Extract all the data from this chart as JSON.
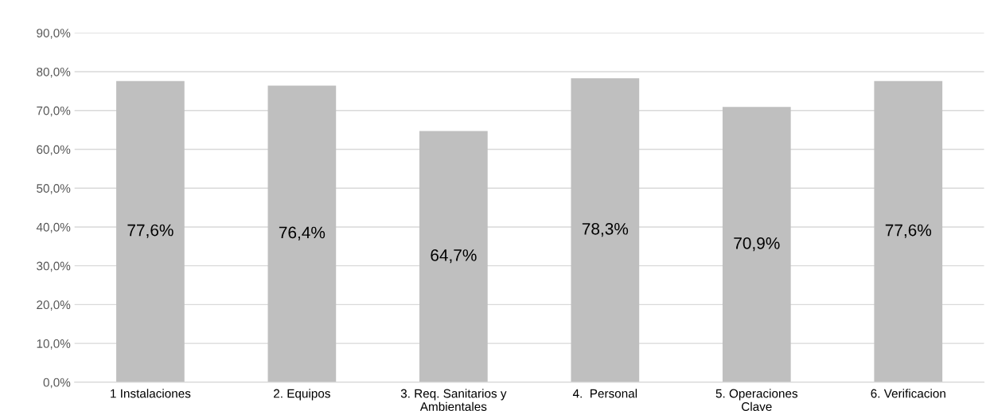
{
  "chart_data": {
    "type": "bar",
    "categories": [
      "1 Instalaciones",
      "2. Equipos",
      "3. Req. Sanitarios y\nAmbientales",
      "4.  Personal",
      "5. Operaciones\nClave",
      "6. Verificacion"
    ],
    "values": [
      77.6,
      76.4,
      64.7,
      78.3,
      70.9,
      77.6
    ],
    "color": "#bfbfbf",
    "value_labels": [
      "77,6%",
      "76,4%",
      "64,7%",
      "78,3%",
      "70,9%",
      "77,6%"
    ],
    "ylim": [
      0,
      90
    ],
    "yticks": [
      {
        "value": 0,
        "label": "0,0%"
      },
      {
        "value": 10,
        "label": "10,0%"
      },
      {
        "value": 20,
        "label": "20,0%"
      },
      {
        "value": 30,
        "label": "30,0%"
      },
      {
        "value": 40,
        "label": "40,0%"
      },
      {
        "value": 50,
        "label": "50,0%"
      },
      {
        "value": 60,
        "label": "60,0%"
      },
      {
        "value": 70,
        "label": "70,0%"
      },
      {
        "value": 80,
        "label": "80,0%"
      },
      {
        "value": 90,
        "label": "90,0%"
      }
    ],
    "grid": "y",
    "legend": false
  }
}
